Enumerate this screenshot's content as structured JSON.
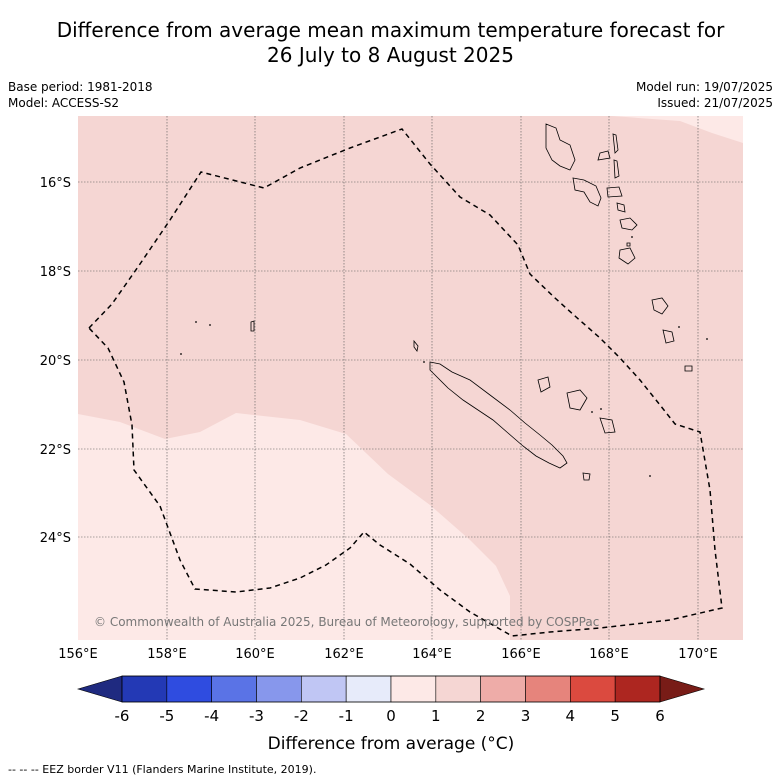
{
  "header": {
    "title_line1": "Difference from average mean maximum temperature forecast for",
    "title_line2": "26 July to 8 August 2025"
  },
  "meta_left": {
    "base_period": "Base period: 1981-2018",
    "model": "Model: ACCESS-S2"
  },
  "meta_right": {
    "model_run": "Model run: 19/07/2025",
    "issued": "Issued: 21/07/2025"
  },
  "map": {
    "lat_labels": [
      "16°S",
      "18°S",
      "20°S",
      "22°S",
      "24°S"
    ],
    "lon_labels": [
      "156°E",
      "158°E",
      "160°E",
      "162°E",
      "164°E",
      "166°E",
      "168°E",
      "170°E"
    ],
    "copyright": "© Commonwealth of Australia 2025, Bureau of Meteorology, supported by COSPPac",
    "fill_colors": {
      "band_0_1": "#fde9e7",
      "band_1_2": "#f5d6d3"
    }
  },
  "colorbar": {
    "tick_labels": [
      "-6",
      "-5",
      "-4",
      "-3",
      "-2",
      "-1",
      "0",
      "1",
      "2",
      "3",
      "4",
      "5",
      "6"
    ],
    "colors": [
      "#1f2a80",
      "#2339b5",
      "#2f4ce0",
      "#5a73e6",
      "#8797ec",
      "#c0c6f4",
      "#e7ebfa",
      "#fde9e7",
      "#f5d6d3",
      "#eeaca8",
      "#e6847c",
      "#db4a3f",
      "#ad2620",
      "#781c17"
    ],
    "label": "Difference from average (°C)"
  },
  "footer": {
    "legend_text": "--  --  -- EEZ border V11 (Flanders Marine Institute, 2019)."
  }
}
